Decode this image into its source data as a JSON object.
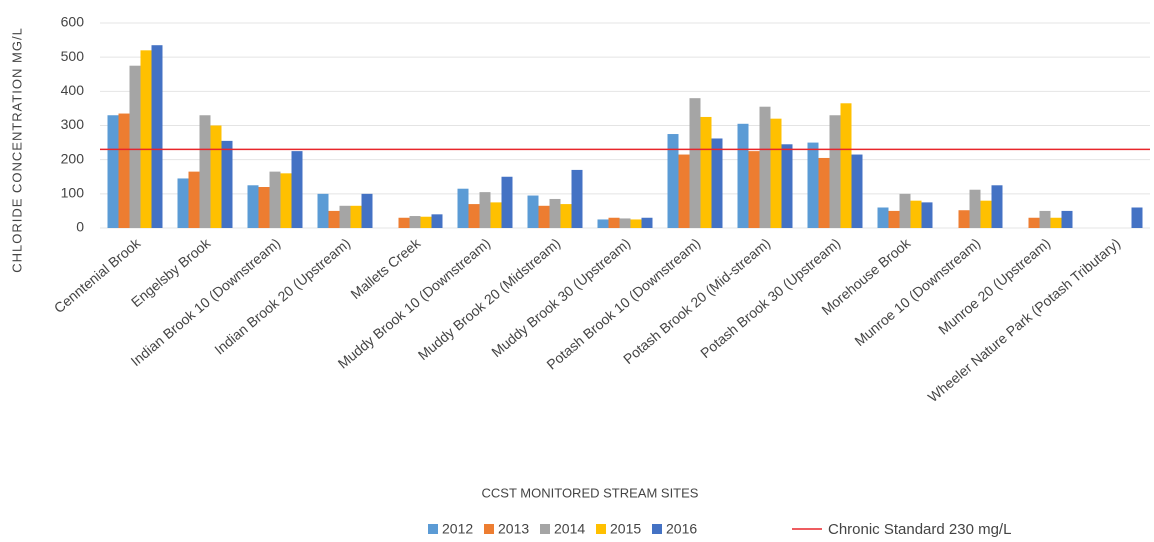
{
  "chart_data": {
    "type": "bar",
    "y_label": "CHLORIDE CONCENTRATION  MG/L",
    "x_label": "CCST MONITORED STREAM SITES",
    "categories": [
      "Cenntenial Brook",
      "Engelsby Brook",
      "Indian Brook 10 (Downstream)",
      "Indian Brook 20 (Upstream)",
      "Mallets Creek",
      "Muddy Brook 10 (Downstream)",
      "Muddy Brook 20 (Midstream)",
      "Muddy Brook 30 (Upstream)",
      "Potash Brook 10 (Downstream)",
      "Potash Brook 20 (Mid-stream)",
      "Potash Brook 30 (Upstream)",
      "Morehouse Brook",
      "Munroe 10 (Downstream)",
      "Munroe 20 (Upstream)",
      "Wheeler Nature Park (Potash Tributary)"
    ],
    "series": [
      {
        "name": "2012",
        "color": "#5b9bd5",
        "values": [
          330,
          145,
          125,
          100,
          null,
          115,
          95,
          25,
          275,
          305,
          250,
          60,
          null,
          null,
          null
        ]
      },
      {
        "name": "2013",
        "color": "#ed7d31",
        "values": [
          335,
          165,
          120,
          50,
          30,
          70,
          65,
          30,
          215,
          225,
          205,
          50,
          52,
          30,
          null
        ]
      },
      {
        "name": "2014",
        "color": "#a5a5a5",
        "values": [
          475,
          330,
          165,
          65,
          35,
          105,
          85,
          28,
          380,
          355,
          330,
          100,
          112,
          50,
          null
        ]
      },
      {
        "name": "2015",
        "color": "#ffc000",
        "values": [
          520,
          300,
          160,
          65,
          33,
          75,
          70,
          25,
          325,
          320,
          365,
          80,
          80,
          30,
          null
        ]
      },
      {
        "name": "2016",
        "color": "#4472c4",
        "values": [
          535,
          255,
          225,
          100,
          40,
          150,
          170,
          30,
          262,
          245,
          215,
          75,
          125,
          50,
          60
        ]
      }
    ],
    "reference_line": {
      "name": "Chronic Standard 230 mg/L",
      "value": 230,
      "color": "#e8262b"
    },
    "ylim": [
      0,
      600
    ],
    "yticks": [
      0,
      100,
      200,
      300,
      400,
      500,
      600
    ],
    "grid": true
  }
}
